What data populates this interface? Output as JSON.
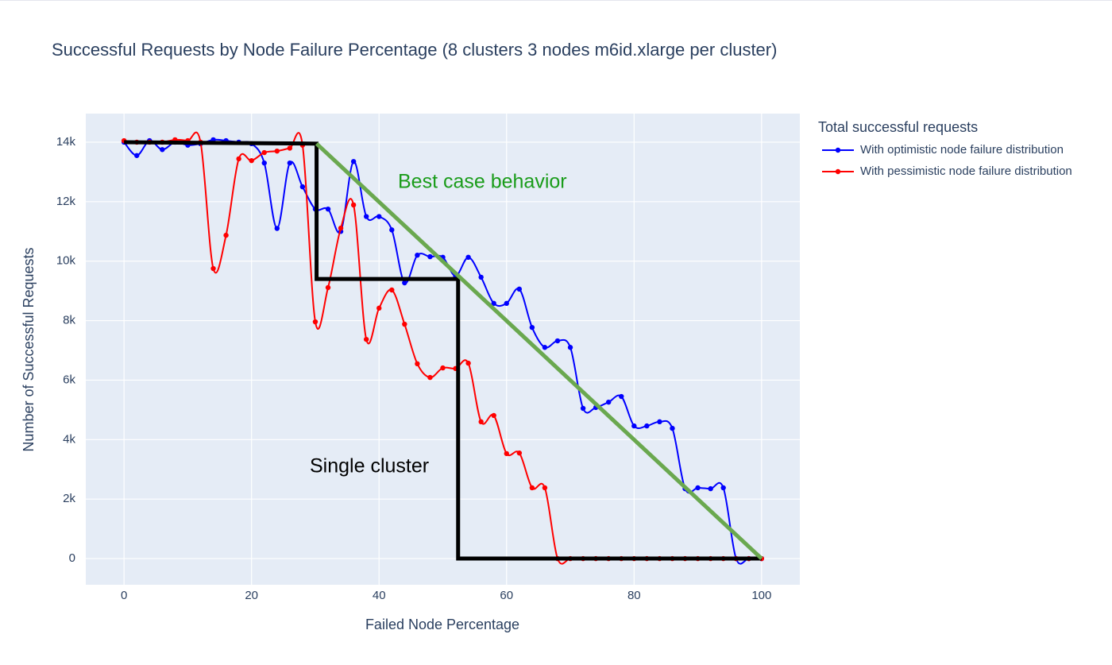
{
  "chart_data": {
    "type": "line",
    "title": "Successful Requests by Node Failure Percentage (8 clusters 3 nodes m6id.xlarge per cluster)",
    "x_label": "Failed Node Percentage",
    "y_label": "Number of Successful Requests",
    "legend_title": "Total successful requests",
    "x": [
      0,
      2,
      4,
      6,
      8,
      10,
      12,
      14,
      16,
      18,
      20,
      22,
      24,
      26,
      28,
      30,
      32,
      34,
      36,
      38,
      40,
      42,
      44,
      46,
      48,
      50,
      52,
      54,
      56,
      58,
      60,
      62,
      64,
      66,
      68,
      70,
      72,
      74,
      76,
      78,
      80,
      82,
      84,
      86,
      88,
      90,
      92,
      94,
      96,
      98,
      100
    ],
    "series": [
      {
        "name": "With optimistic node failure distribution",
        "color": "#0000ff",
        "values": [
          14000,
          13550,
          14050,
          13750,
          14000,
          13900,
          13950,
          14080,
          14050,
          14000,
          13950,
          13300,
          11100,
          13300,
          12500,
          11750,
          11750,
          11000,
          13350,
          11500,
          11500,
          11050,
          9270,
          10200,
          10150,
          10130,
          9500,
          10130,
          9460,
          8580,
          8580,
          9060,
          7770,
          7100,
          7320,
          7100,
          5050,
          5080,
          5260,
          5450,
          4460,
          4460,
          4600,
          4380,
          2350,
          2380,
          2350,
          2380,
          0,
          0,
          0
        ]
      },
      {
        "name": "With pessimistic node failure distribution",
        "color": "#ff0000",
        "values": [
          14050,
          14000,
          14000,
          14000,
          14080,
          14050,
          14000,
          9750,
          10870,
          13440,
          13380,
          13650,
          13700,
          13800,
          13900,
          7960,
          9110,
          11110,
          11890,
          7370,
          8420,
          9030,
          7880,
          6550,
          6090,
          6410,
          6390,
          6570,
          4600,
          4810,
          3530,
          3550,
          2380,
          2380,
          0,
          0,
          0,
          0,
          0,
          0,
          0,
          0,
          0,
          0,
          0,
          0,
          0,
          0,
          0,
          0,
          0
        ]
      }
    ],
    "shapes": [
      {
        "color": "#000000",
        "x": [
          0,
          30.2,
          30.2,
          52.4,
          52.4,
          100
        ],
        "y": [
          14000,
          13950,
          9400,
          9400,
          0,
          0
        ]
      },
      {
        "color": "#6aa84f",
        "x": [
          30.2,
          100
        ],
        "y": [
          13950,
          0
        ]
      }
    ],
    "annotations": [
      {
        "text": "Best case behavior",
        "color": "#1a9c1a"
      },
      {
        "text": "Single cluster",
        "color": "#000000"
      }
    ],
    "xlim": [
      -6,
      106
    ],
    "ylim": [
      -880,
      14960
    ],
    "xticks": [
      0,
      20,
      40,
      60,
      80,
      100
    ],
    "yticks": [
      0,
      {
        "value": 2000,
        "label": "2k"
      },
      {
        "value": 4000,
        "label": "4k"
      },
      {
        "value": 6000,
        "label": "6k"
      },
      {
        "value": 8000,
        "label": "8k"
      },
      {
        "value": 10000,
        "label": "10k"
      },
      {
        "value": 12000,
        "label": "12k"
      },
      {
        "value": 14000,
        "label": "14k"
      }
    ],
    "grid": true
  }
}
